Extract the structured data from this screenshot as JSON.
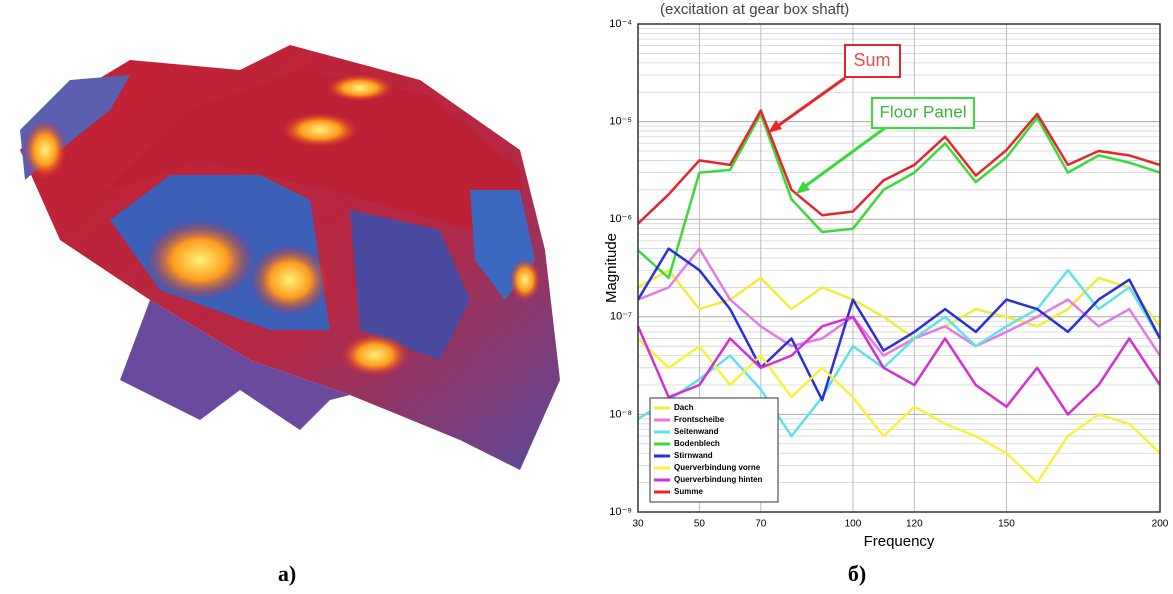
{
  "chart_data": {
    "type": "line",
    "title": "(excitation at gear box shaft)",
    "x_label": "Frequency",
    "y_label": "Magnitude",
    "annotations": [
      "Sum",
      "Floor Panel"
    ],
    "x": [
      30,
      40,
      50,
      60,
      70,
      80,
      90,
      100,
      110,
      120,
      130,
      140,
      150,
      160,
      170,
      180,
      190,
      200
    ],
    "xlim": [
      30,
      200
    ],
    "xticks": [
      30,
      50,
      70,
      100,
      120,
      150,
      200
    ],
    "ylim": [
      1e-09,
      0.0001
    ],
    "log_y": true,
    "grid": true,
    "legend": "lower left",
    "yticks": [
      {
        "value": 1e-09,
        "label": "10⁻⁹"
      },
      {
        "value": 1e-08,
        "label": "10⁻⁸"
      },
      {
        "value": 1e-07,
        "label": "10⁻⁷"
      },
      {
        "value": 1e-06,
        "label": "10⁻⁶"
      },
      {
        "value": 1e-05,
        "label": "10⁻⁵"
      },
      {
        "value": 0.0001,
        "label": "10⁻⁴"
      }
    ],
    "series": [
      {
        "name": "Dach",
        "color": "#f2ec3a",
        "values": [
          2e-07,
          3e-07,
          1.2e-07,
          1.5e-07,
          2.5e-07,
          1.2e-07,
          2e-07,
          1.5e-07,
          1e-07,
          6e-08,
          8e-08,
          1.2e-07,
          1e-07,
          8e-08,
          1.2e-07,
          2.5e-07,
          2e-07,
          8e-08
        ]
      },
      {
        "name": "Frontscheibe",
        "color": "#e27ae8",
        "values": [
          1.5e-07,
          2e-07,
          5e-07,
          1.5e-07,
          8e-08,
          5e-08,
          6e-08,
          1e-07,
          4e-08,
          6e-08,
          8e-08,
          5e-08,
          7e-08,
          1e-07,
          1.5e-07,
          8e-08,
          1.2e-07,
          4e-08
        ]
      },
      {
        "name": "Seitenwand",
        "color": "#5fe3e8",
        "values": [
          9e-09,
          1.4e-08,
          2.3e-08,
          4e-08,
          1.8e-08,
          6e-09,
          1.5e-08,
          5e-08,
          3e-08,
          6e-08,
          1e-07,
          5e-08,
          8e-08,
          1.2e-07,
          3e-07,
          1.2e-07,
          2e-07,
          6e-08
        ]
      },
      {
        "name": "Bodenblech",
        "color": "#3bd93b",
        "values": [
          4.8e-07,
          2.5e-07,
          3e-06,
          3.2e-06,
          1.2e-05,
          1.6e-06,
          7.4e-07,
          8e-07,
          2e-06,
          3e-06,
          6e-06,
          2.4e-06,
          4.3e-06,
          1.1e-05,
          3e-06,
          4.5e-06,
          3.8e-06,
          3e-06
        ]
      },
      {
        "name": "Stirnwand",
        "color": "#2a2ee0",
        "values": [
          1.5e-07,
          5e-07,
          3e-07,
          1.2e-07,
          3e-08,
          6e-08,
          1.4e-08,
          1.5e-07,
          4.5e-08,
          7e-08,
          1.2e-07,
          7e-08,
          1.5e-07,
          1.2e-07,
          7e-08,
          1.5e-07,
          2.4e-07,
          6e-08
        ]
      },
      {
        "name": "Querverbindung vorne",
        "color": "#f7f23e",
        "values": [
          6e-08,
          3e-08,
          5e-08,
          2e-08,
          4e-08,
          1.5e-08,
          3e-08,
          1.5e-08,
          6e-09,
          1.2e-08,
          8e-09,
          6e-09,
          4e-09,
          2e-09,
          6e-09,
          1e-08,
          8e-09,
          4e-09
        ]
      },
      {
        "name": "Querverbindung hinten",
        "color": "#d62fd6",
        "values": [
          8e-08,
          1.5e-08,
          2e-08,
          6e-08,
          3e-08,
          4e-08,
          8e-08,
          1e-07,
          3e-08,
          2e-08,
          6e-08,
          2e-08,
          1.2e-08,
          3e-08,
          1e-08,
          2e-08,
          6e-08,
          2e-08
        ]
      },
      {
        "name": "Summe",
        "color": "#e8252a",
        "values": [
          9e-07,
          1.8e-06,
          4e-06,
          3.6e-06,
          1.3e-05,
          2e-06,
          1.1e-06,
          1.2e-06,
          2.5e-06,
          3.6e-06,
          7e-06,
          2.8e-06,
          5.1e-06,
          1.2e-05,
          3.6e-06,
          5e-06,
          4.5e-06,
          3.6e-06
        ]
      }
    ]
  },
  "captions": [
    "a)",
    "б)"
  ]
}
